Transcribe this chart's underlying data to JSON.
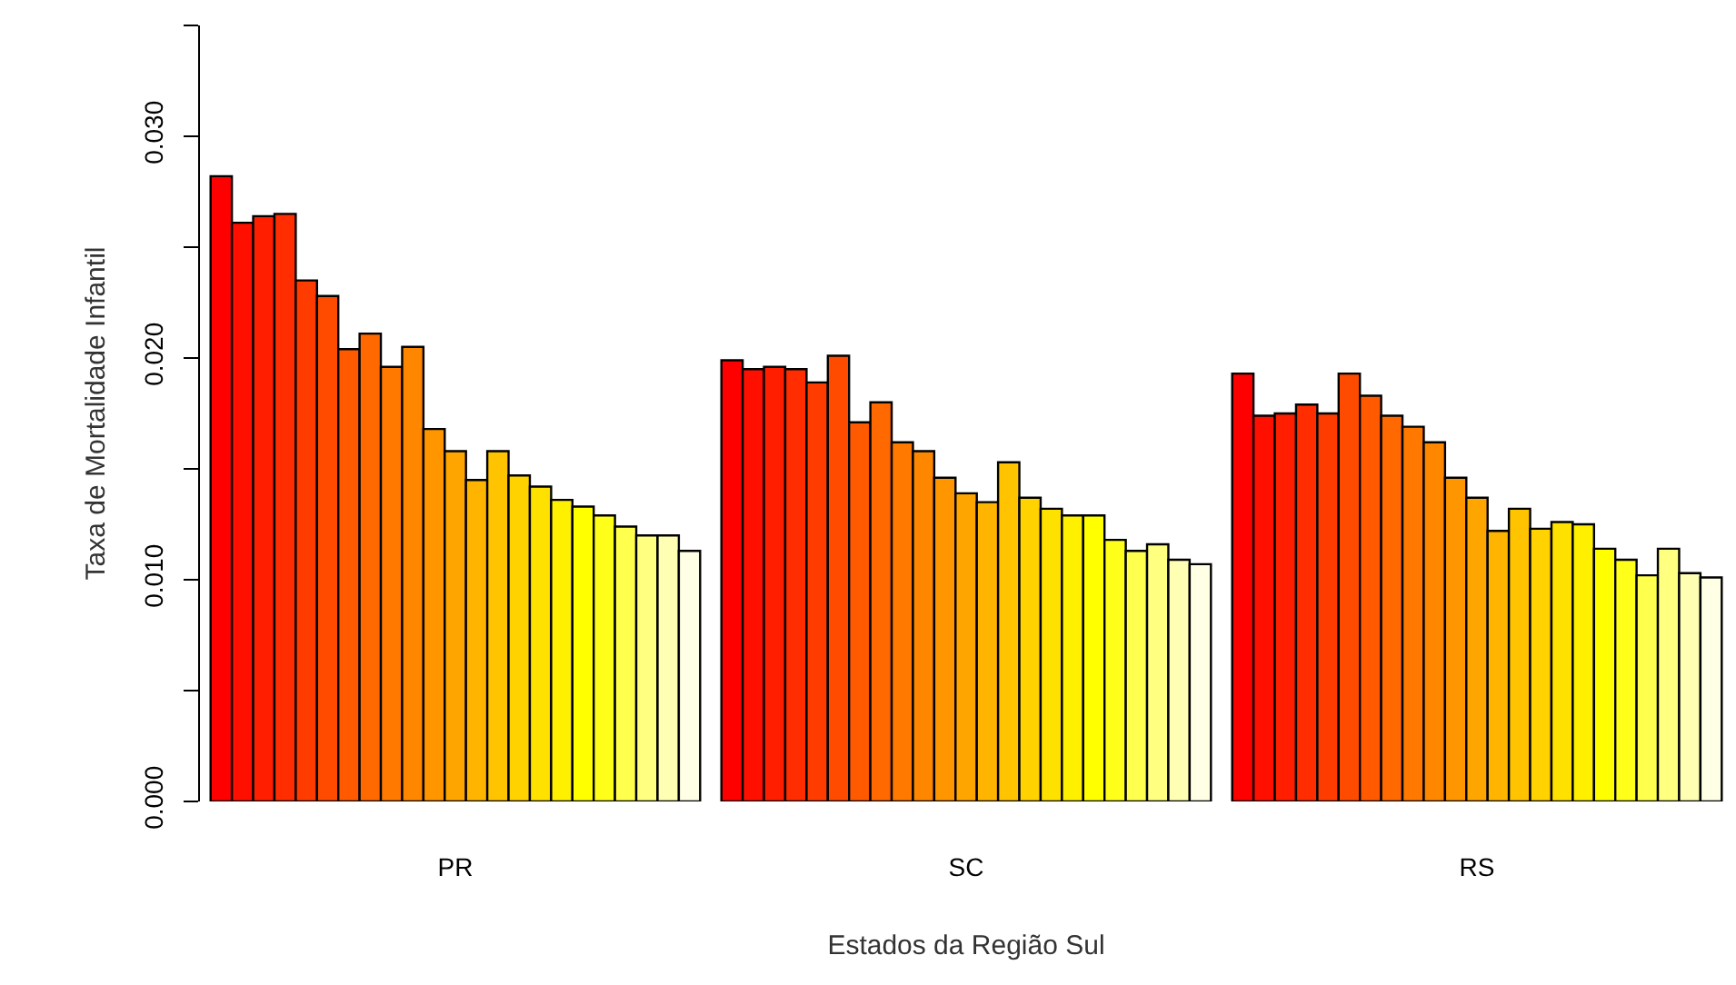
{
  "chart_data": {
    "type": "bar",
    "xlabel": "Estados da Região Sul",
    "ylabel": "Taxa de Mortalidade Infantil",
    "categories": [
      "PR",
      "SC",
      "RS"
    ],
    "series": [
      {
        "color": "#ff0000",
        "values": [
          0.0282,
          0.0199,
          0.0193
        ]
      },
      {
        "color": "#ff0f00",
        "values": [
          0.0261,
          0.0195,
          0.0174
        ]
      },
      {
        "color": "#ff1e00",
        "values": [
          0.0264,
          0.0196,
          0.0175
        ]
      },
      {
        "color": "#ff2d00",
        "values": [
          0.0265,
          0.0195,
          0.0179
        ]
      },
      {
        "color": "#ff3c00",
        "values": [
          0.0235,
          0.0189,
          0.0175
        ]
      },
      {
        "color": "#ff4b00",
        "values": [
          0.0228,
          0.0201,
          0.0193
        ]
      },
      {
        "color": "#ff5a00",
        "values": [
          0.0204,
          0.0171,
          0.0183
        ]
      },
      {
        "color": "#ff6900",
        "values": [
          0.0211,
          0.018,
          0.0174
        ]
      },
      {
        "color": "#ff7800",
        "values": [
          0.0196,
          0.0162,
          0.0169
        ]
      },
      {
        "color": "#ff8700",
        "values": [
          0.0205,
          0.0158,
          0.0162
        ]
      },
      {
        "color": "#ff9600",
        "values": [
          0.0168,
          0.0146,
          0.0146
        ]
      },
      {
        "color": "#ffa500",
        "values": [
          0.0158,
          0.0139,
          0.0137
        ]
      },
      {
        "color": "#ffb400",
        "values": [
          0.0145,
          0.0135,
          0.0122
        ]
      },
      {
        "color": "#ffc300",
        "values": [
          0.0158,
          0.0153,
          0.0132
        ]
      },
      {
        "color": "#ffd200",
        "values": [
          0.0147,
          0.0137,
          0.0123
        ]
      },
      {
        "color": "#ffe100",
        "values": [
          0.0142,
          0.0132,
          0.0126
        ]
      },
      {
        "color": "#fff000",
        "values": [
          0.0136,
          0.0129,
          0.0125
        ]
      },
      {
        "color": "#ffff00",
        "values": [
          0.0133,
          0.0129,
          0.0114
        ]
      },
      {
        "color": "#ffff1a",
        "values": [
          0.0129,
          0.0118,
          0.0109
        ]
      },
      {
        "color": "#ffff4d",
        "values": [
          0.0124,
          0.0113,
          0.0102
        ]
      },
      {
        "color": "#ffff80",
        "values": [
          0.012,
          0.0116,
          0.0114
        ]
      },
      {
        "color": "#ffffb3",
        "values": [
          0.012,
          0.0109,
          0.0103
        ]
      },
      {
        "color": "#ffffe6",
        "values": [
          0.0113,
          0.0107,
          0.0101
        ]
      }
    ],
    "ylim": [
      0,
      0.035
    ],
    "yticks": [
      {
        "value": 0,
        "label": "0.000"
      },
      {
        "value": 0.005,
        "label": null
      },
      {
        "value": 0.01,
        "label": "0.010"
      },
      {
        "value": 0.015,
        "label": null
      },
      {
        "value": 0.02,
        "label": "0.020"
      },
      {
        "value": 0.025,
        "label": null
      },
      {
        "value": 0.03,
        "label": "0.030"
      },
      {
        "value": 0.035,
        "label": null
      }
    ],
    "tick_labels": true
  }
}
